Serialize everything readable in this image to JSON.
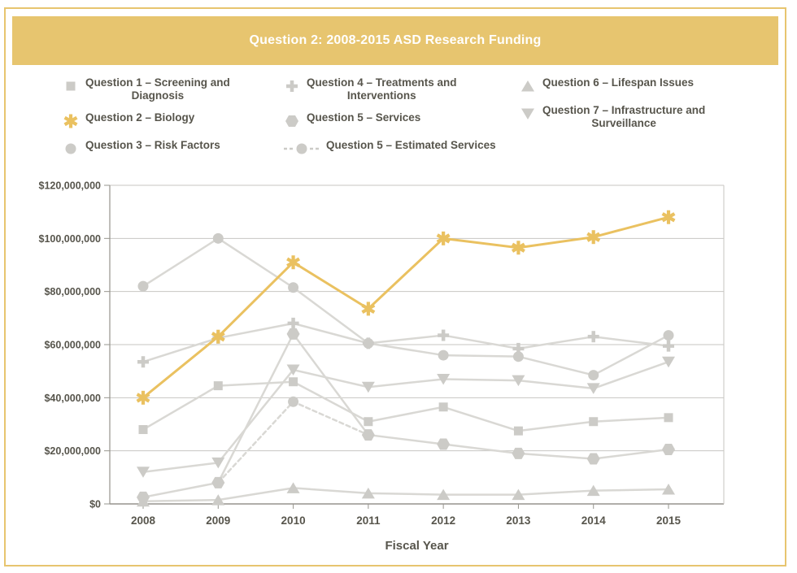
{
  "page": {
    "title": "Question 2: 2008-2015 ASD Research Funding"
  },
  "colors": {
    "banner_gold": "#e7c56f",
    "series_gold": "#eac160",
    "gray_line": "#d9d8d4",
    "gray_marker": "#cccbc7",
    "text": "#57554c",
    "grid": "#c7c6c2",
    "axis": "#96948d",
    "banner_text": "#ffffff"
  },
  "legend": {
    "columns": [
      {
        "items": [
          {
            "marker": "square",
            "label": "Question 1 – Screening and\nDiagnosis"
          },
          {
            "marker": "asterisk",
            "label": "Question 2 – Biology",
            "gold": true
          },
          {
            "marker": "circle",
            "label": "Question 3 – Risk Factors"
          }
        ]
      },
      {
        "items": [
          {
            "marker": "plus",
            "label": "Question 4 – Treatments and\nInterventions"
          },
          {
            "marker": "hexagon",
            "label": "Question 5 – Services"
          },
          {
            "marker": "dashed-circle",
            "label": "Question 5 – Estimated Services"
          }
        ]
      },
      {
        "items": [
          {
            "marker": "triangle-up",
            "label": "Question 6 – Lifespan Issues"
          },
          {
            "marker": "triangle-down",
            "label": "Question 7 – Infrastructure and\nSurveillance"
          }
        ]
      }
    ]
  },
  "chart_data": {
    "type": "line",
    "x": [
      2008,
      2009,
      2010,
      2011,
      2012,
      2013,
      2014,
      2015
    ],
    "xlabel": "Fiscal Year",
    "ylabel": "",
    "ylim_usd": [
      0,
      120000000
    ],
    "ytick_step_usd": 20000000,
    "ytick_labels": [
      "$0",
      "$20,000,000",
      "$40,000,000",
      "$60,000,000",
      "$80,000,000",
      "$100,000,000",
      "$120,000,000"
    ],
    "grid": true,
    "legend_position": "top",
    "units": "million USD",
    "series": [
      {
        "name": "Question 3 – Risk Factors",
        "marker": "circle",
        "style": "solid",
        "gold": false,
        "values_musd": [
          82,
          100,
          81.5,
          60.5,
          56,
          55.5,
          48.5,
          63.5
        ]
      },
      {
        "name": "Question 4 – Treatments and Interventions",
        "marker": "plus",
        "style": "solid",
        "gold": false,
        "values_musd": [
          53.5,
          62.5,
          68,
          60.5,
          63.5,
          58.5,
          63,
          59.5
        ]
      },
      {
        "name": "Question 1 – Screening and Diagnosis",
        "marker": "square",
        "style": "solid",
        "gold": false,
        "values_musd": [
          28,
          44.5,
          46,
          31,
          36.5,
          27.5,
          31,
          32.5
        ]
      },
      {
        "name": "Question 7 – Infrastructure and Surveillance",
        "marker": "triangle-down",
        "style": "solid",
        "gold": false,
        "values_musd": [
          12,
          15.5,
          50.5,
          44,
          47,
          46.5,
          43.5,
          53.5
        ]
      },
      {
        "name": "Question 6 – Lifespan Issues",
        "marker": "triangle-up",
        "style": "solid",
        "gold": false,
        "values_musd": [
          1,
          1.5,
          6,
          4,
          3.5,
          3.5,
          5,
          5.5
        ]
      },
      {
        "name": "Question 5 – Services",
        "marker": "hexagon",
        "style": "solid",
        "gold": false,
        "values_musd": [
          2.5,
          8,
          64,
          26,
          22.5,
          19,
          17,
          20.5
        ]
      },
      {
        "name": "Question 5 – Estimated Services",
        "marker": "circle",
        "style": "dashed",
        "gold": false,
        "values_musd": [
          null,
          8,
          38.5,
          26,
          null,
          null,
          null,
          null
        ]
      },
      {
        "name": "Question 2 – Biology",
        "marker": "asterisk",
        "style": "solid",
        "gold": true,
        "values_musd": [
          40,
          63,
          91,
          73.5,
          100,
          96.5,
          100.5,
          108
        ]
      }
    ]
  }
}
